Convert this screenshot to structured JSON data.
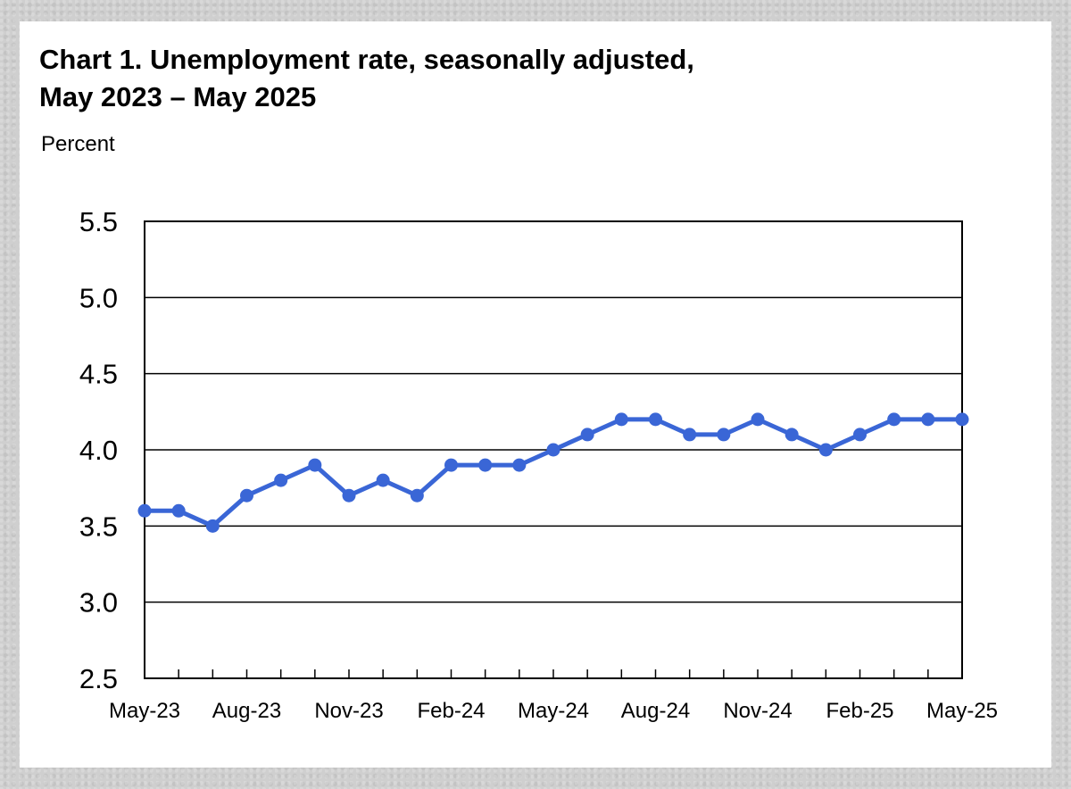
{
  "chart_data": {
    "type": "line",
    "title_line1": "Chart 1. Unemployment rate, seasonally adjusted,",
    "title_line2": "May 2023 – May 2025",
    "xlabel": "",
    "ylabel": "Percent",
    "ylim": [
      2.5,
      5.5
    ],
    "yticks": [
      "5.5",
      "5.0",
      "4.5",
      "4.0",
      "3.5",
      "3.0",
      "2.5"
    ],
    "ytick_values": [
      5.5,
      5.0,
      4.5,
      4.0,
      3.5,
      3.0,
      2.5
    ],
    "grid": true,
    "line_color": "#3a66d6",
    "x": [
      "May-23",
      "Jun-23",
      "Jul-23",
      "Aug-23",
      "Sep-23",
      "Oct-23",
      "Nov-23",
      "Dec-23",
      "Jan-24",
      "Feb-24",
      "Mar-24",
      "Apr-24",
      "May-24",
      "Jun-24",
      "Jul-24",
      "Aug-24",
      "Sep-24",
      "Oct-24",
      "Nov-24",
      "Dec-24",
      "Jan-25",
      "Feb-25",
      "Mar-25",
      "Apr-25",
      "May-25"
    ],
    "xtick_labels": [
      "May-23",
      "Aug-23",
      "Nov-23",
      "Feb-24",
      "May-24",
      "Aug-24",
      "Nov-24",
      "Feb-25",
      "May-25"
    ],
    "series": [
      {
        "values": [
          3.6,
          3.6,
          3.5,
          3.7,
          3.8,
          3.9,
          3.7,
          3.8,
          3.7,
          3.9,
          3.9,
          3.9,
          4.0,
          4.1,
          4.2,
          4.2,
          4.1,
          4.1,
          4.2,
          4.1,
          4.0,
          4.1,
          4.2,
          4.2,
          4.2
        ]
      }
    ]
  }
}
